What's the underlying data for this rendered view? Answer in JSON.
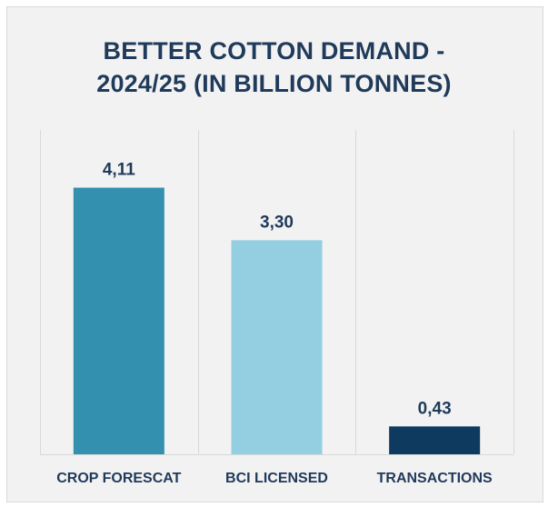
{
  "chart_data": {
    "type": "bar",
    "title_lines": [
      "BETTER COTTON DEMAND -",
      "2024/25 (IN BILLION TONNES)"
    ],
    "categories": [
      "CROP FORESCAT",
      "BCI LICENSED",
      "TRANSACTIONS"
    ],
    "values": [
      4.11,
      3.3,
      0.43
    ],
    "data_labels": [
      "4,11",
      "3,30",
      "0,43"
    ],
    "bar_colors": [
      "#3390ae",
      "#93cfe0",
      "#0d3a5e"
    ],
    "xlabel": "",
    "ylabel": "",
    "ylim": [
      0,
      5
    ],
    "grid": "vertical separators",
    "legend": "none"
  },
  "colors": {
    "panel_bg": "#f2f2f2",
    "title": "#1f3a5a",
    "label": "#1f3a5a",
    "separator": "#d9d9d9"
  }
}
